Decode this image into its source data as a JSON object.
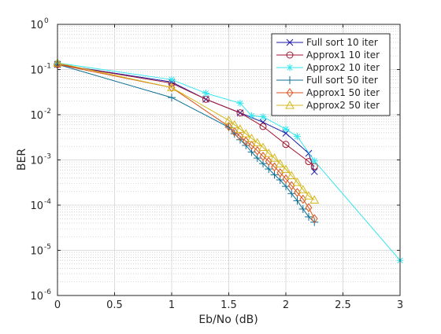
{
  "chart_data": {
    "type": "line",
    "xlabel": "Eb/No (dB)",
    "ylabel": "BER",
    "xlim": [
      0,
      3
    ],
    "ylim": [
      1e-06,
      1
    ],
    "yscale": "log",
    "grid": true,
    "minor_grid": true,
    "legend_position": "top-right",
    "x_ticks": [
      0,
      0.5,
      1,
      1.5,
      2,
      2.5,
      3
    ],
    "x_tick_labels": [
      "0",
      "0.5",
      "1",
      "1.5",
      "2",
      "2.5",
      "3"
    ],
    "y_ticks": [
      {
        "value": 1,
        "base": "10",
        "exp": "0"
      },
      {
        "value": 0.1,
        "base": "10",
        "exp": "-1"
      },
      {
        "value": 0.01,
        "base": "10",
        "exp": "-2"
      },
      {
        "value": 0.001,
        "base": "10",
        "exp": "-3"
      },
      {
        "value": 0.0001,
        "base": "10",
        "exp": "-4"
      },
      {
        "value": 1e-05,
        "base": "10",
        "exp": "-5"
      },
      {
        "value": 1e-06,
        "base": "10",
        "exp": "-6"
      }
    ],
    "series": [
      {
        "name": "Full sort 10 iter",
        "color": "#1a1aa6",
        "marker": "x",
        "x": [
          0,
          1,
          1.3,
          1.6,
          1.8,
          2.0,
          2.2,
          2.25
        ],
        "y": [
          0.13,
          0.053,
          0.022,
          0.011,
          0.0068,
          0.0039,
          0.0014,
          0.00055
        ]
      },
      {
        "name": "Approx1 10 iter",
        "color": "#a2142f",
        "marker": "o",
        "x": [
          0,
          1,
          1.3,
          1.6,
          1.8,
          2.0,
          2.2,
          2.25
        ],
        "y": [
          0.13,
          0.05,
          0.022,
          0.011,
          0.0055,
          0.0022,
          0.00092,
          0.00072
        ]
      },
      {
        "name": "Approx2 10 iter",
        "color": "#33e6ee",
        "marker": "*",
        "x": [
          0,
          1,
          1.3,
          1.6,
          1.7,
          1.8,
          2.0,
          2.1,
          2.25,
          3.0
        ],
        "y": [
          0.14,
          0.06,
          0.03,
          0.018,
          0.0095,
          0.009,
          0.0048,
          0.0033,
          0.00095,
          6e-06
        ]
      },
      {
        "name": "Full sort 50 iter",
        "color": "#0c6f93",
        "marker": "+",
        "x": [
          0,
          1,
          1.5,
          1.55,
          1.6,
          1.65,
          1.7,
          1.75,
          1.8,
          1.85,
          1.9,
          1.95,
          2.0,
          2.05,
          2.1,
          2.15,
          2.2,
          2.25
        ],
        "y": [
          0.13,
          0.024,
          0.0053,
          0.0038,
          0.0028,
          0.0021,
          0.0015,
          0.0011,
          0.00083,
          0.00063,
          0.00047,
          0.00036,
          0.00026,
          0.00018,
          0.000125,
          8.2e-05,
          5.5e-05,
          4.2e-05
        ]
      },
      {
        "name": "Approx1 50 iter",
        "color": "#d95319",
        "marker": "diamond",
        "x": [
          0,
          1,
          1.5,
          1.55,
          1.6,
          1.65,
          1.7,
          1.75,
          1.8,
          1.85,
          1.9,
          1.95,
          2.0,
          2.05,
          2.1,
          2.15,
          2.2,
          2.25
        ],
        "y": [
          0.13,
          0.04,
          0.0055,
          0.0042,
          0.0033,
          0.0026,
          0.0021,
          0.0016,
          0.0012,
          0.00093,
          0.0007,
          0.00052,
          0.00038,
          0.00027,
          0.00019,
          0.000135,
          8.8e-05,
          5e-05
        ]
      },
      {
        "name": "Approx2 50 iter",
        "color": "#d4b81c",
        "marker": "triangle",
        "x": [
          0,
          1,
          1.5,
          1.55,
          1.6,
          1.65,
          1.7,
          1.75,
          1.8,
          1.85,
          1.9,
          1.95,
          2.0,
          2.05,
          2.1,
          2.15,
          2.2,
          2.25
        ],
        "y": [
          0.14,
          0.04,
          0.0075,
          0.006,
          0.0048,
          0.0038,
          0.003,
          0.0024,
          0.0019,
          0.0014,
          0.0011,
          0.00082,
          0.00062,
          0.00045,
          0.00032,
          0.00022,
          0.00016,
          0.00013
        ]
      }
    ]
  }
}
